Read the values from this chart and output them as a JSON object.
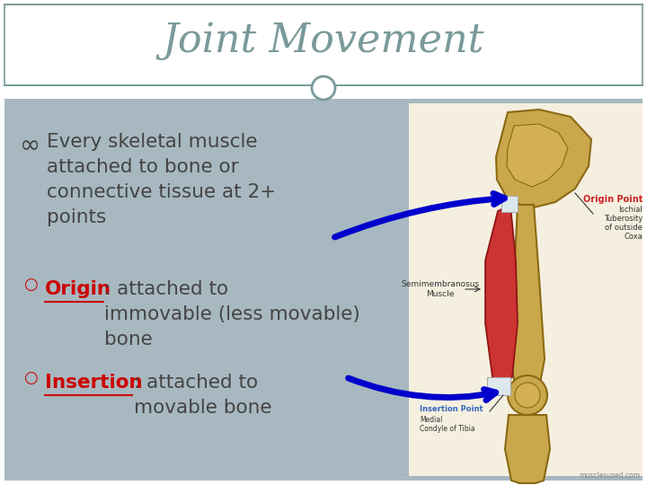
{
  "title": "Joint Movement",
  "title_color": "#7a9a9a",
  "title_fontsize": 32,
  "bg_color": "#ffffff",
  "content_bg_color": "#a8b8c0",
  "header_bg_color": "#ffffff",
  "bullet1": "Every skeletal muscle\nattached to bone or\nconnective tissue at 2+\npoints",
  "bullet2_label": "Origin",
  "bullet2_text": ": attached to\nimmovable (less movable)\nbone",
  "bullet3_label": "Insertion",
  "bullet3_text": ": attached to\nmovable bone",
  "text_color": "#3a3a3a",
  "red_color": "#cc0000",
  "arrow_color": "#0000cc",
  "circle_color": "#7a9a9a",
  "separator_color": "#7a9a9a",
  "content_bg_color2": "#f5efe0"
}
